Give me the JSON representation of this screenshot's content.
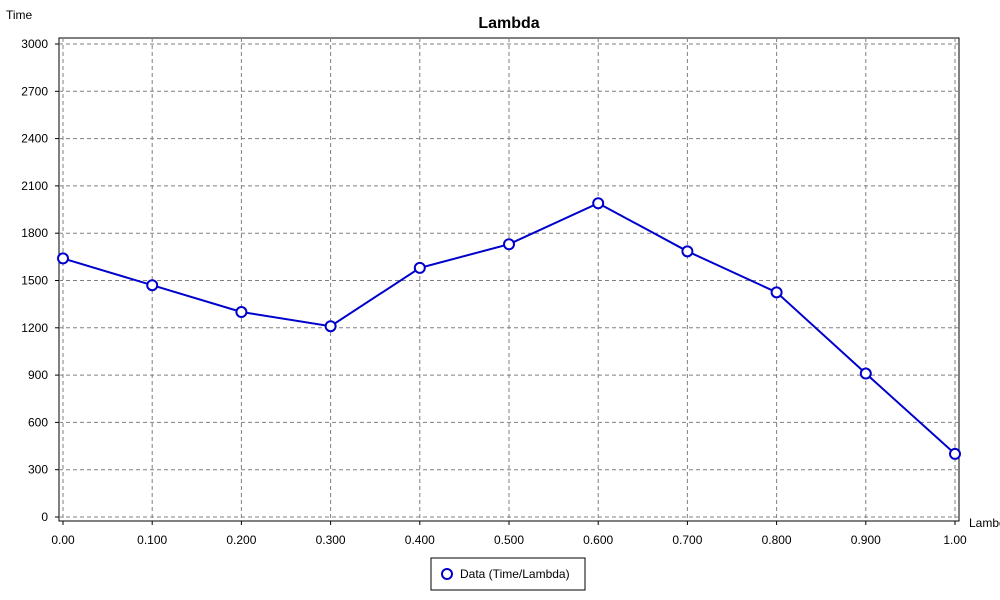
{
  "chart_data": {
    "type": "line",
    "title": "Lambda",
    "xlabel": "Lambda",
    "ylabel": "Time",
    "xlim": [
      0.0,
      1.0
    ],
    "ylim": [
      0,
      3000
    ],
    "x_ticks": [
      "0.00",
      "0.100",
      "0.200",
      "0.300",
      "0.400",
      "0.500",
      "0.600",
      "0.700",
      "0.800",
      "0.900",
      "1.00"
    ],
    "y_ticks": [
      "0",
      "300",
      "600",
      "900",
      "1200",
      "1500",
      "1800",
      "2100",
      "2400",
      "2700",
      "3000"
    ],
    "grid": true,
    "legend_position": "bottom-center",
    "series": [
      {
        "name": "Data (Time/Lambda)",
        "color": "#0000CC",
        "x": [
          0.0,
          0.1,
          0.2,
          0.3,
          0.4,
          0.5,
          0.6,
          0.7,
          0.8,
          0.9,
          1.0
        ],
        "y": [
          1640,
          1470,
          1300,
          1210,
          1580,
          1730,
          1990,
          1685,
          1425,
          910,
          400
        ]
      }
    ]
  }
}
